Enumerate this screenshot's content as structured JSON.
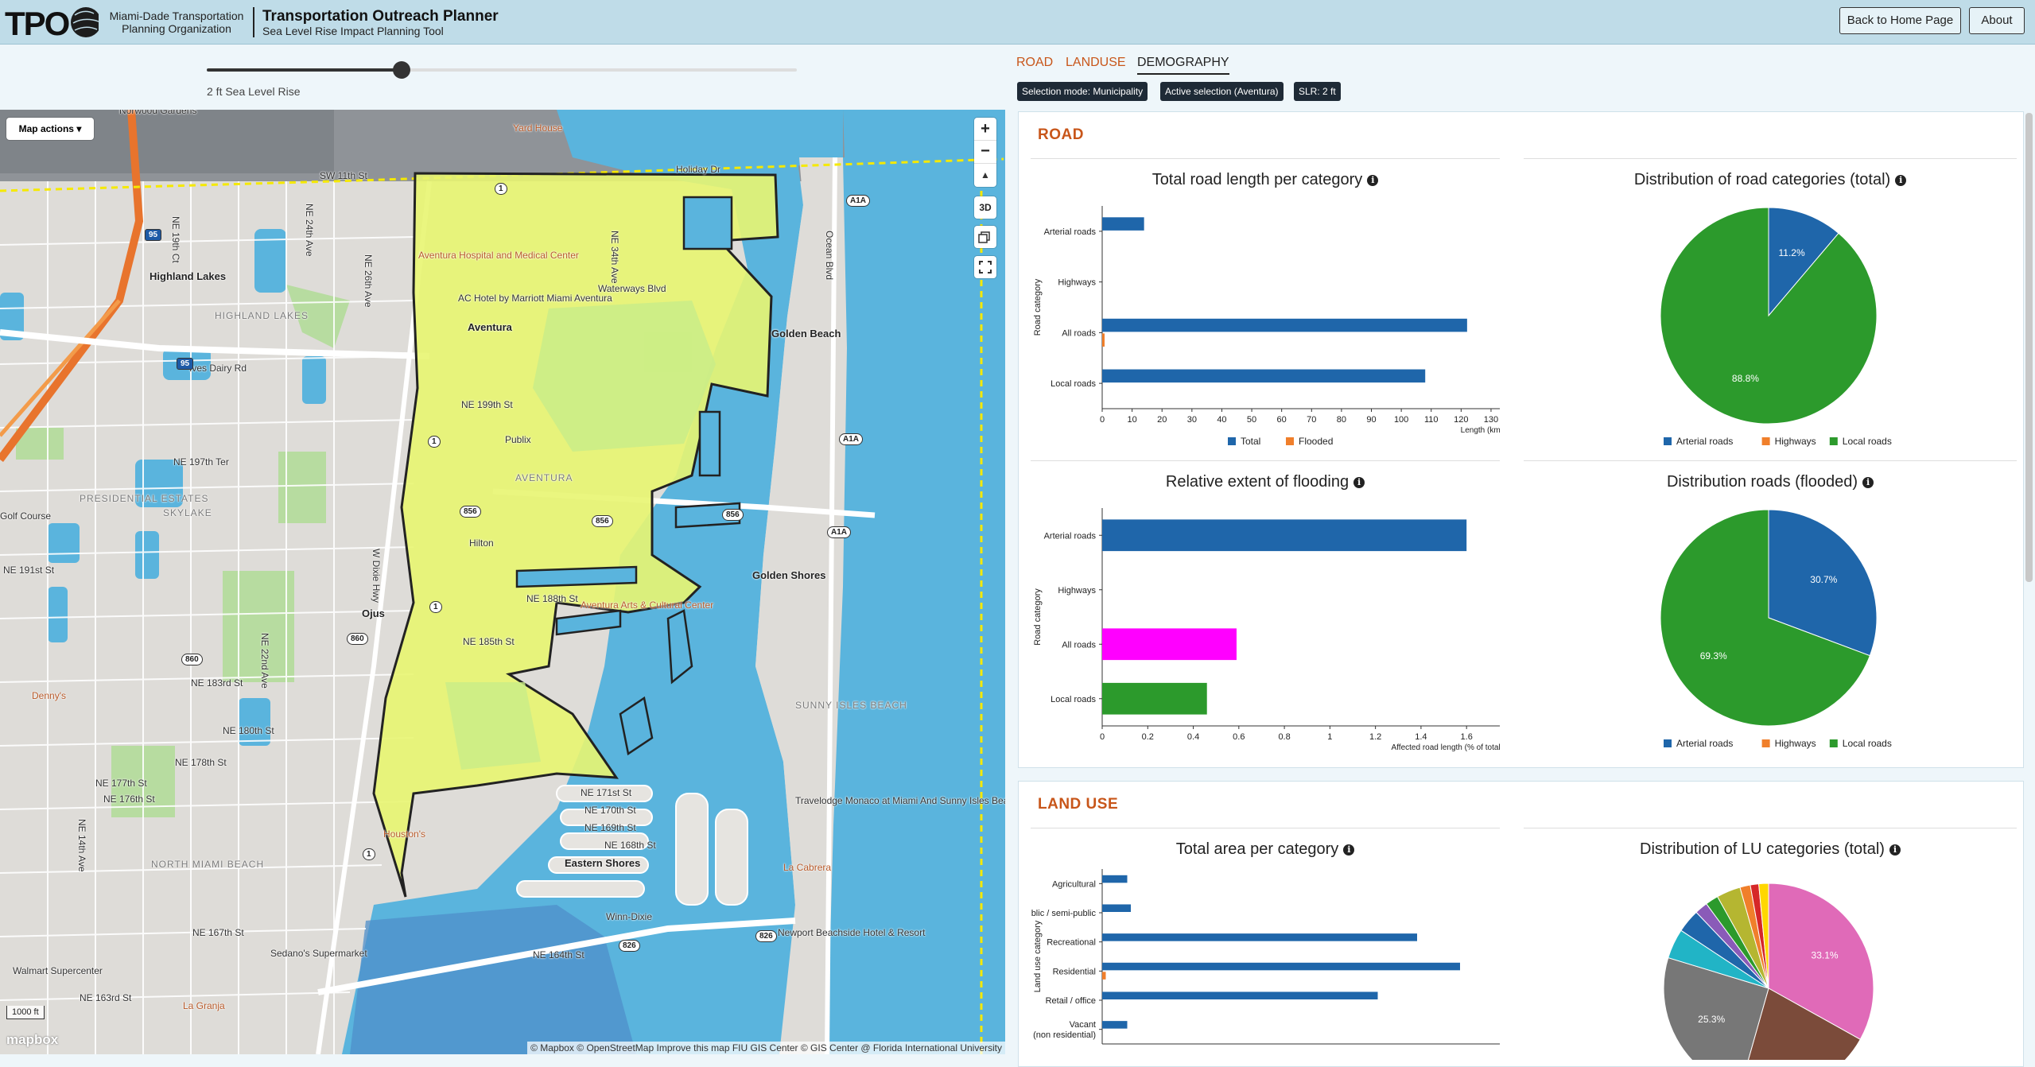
{
  "header": {
    "logo_text": "TPO",
    "org_line1": "Miami-Dade Transportation",
    "org_line2": "Planning Organization",
    "title": "Transportation Outreach Planner",
    "subtitle": "Sea Level Rise Impact Planning Tool",
    "home_button": "Back to Home Page",
    "about_button": "About"
  },
  "slider": {
    "label": "2 ft Sea Level Rise",
    "value_fraction": 0.33
  },
  "map": {
    "actions_button": "Map actions",
    "zoom_in": "+",
    "zoom_out": "−",
    "compass": "▲",
    "btn_3d": "3D",
    "scale": "1000 ft",
    "mapbox_logo": "mapbox",
    "attribution": "© Mapbox © OpenStreetMap Improve this map FIU GIS Center © GIS Center @ Florida International University",
    "labels": [
      {
        "id": "l1",
        "text": "Highland Lakes",
        "bold": true
      },
      {
        "id": "l2",
        "text": "HIGHLAND LAKES",
        "dist": true
      },
      {
        "id": "l3",
        "text": "Aventura",
        "bold": true
      },
      {
        "id": "l4",
        "text": "AVENTURA",
        "dist": true
      },
      {
        "id": "l5",
        "text": "Golden Beach",
        "bold": true
      },
      {
        "id": "l6",
        "text": "Golden Shores",
        "bold": true
      },
      {
        "id": "l7",
        "text": "SUNNY ISLES BEACH",
        "dist": true
      },
      {
        "id": "l8",
        "text": "Eastern Shores",
        "bold": true
      },
      {
        "id": "l9",
        "text": "NORTH MIAMI BEACH",
        "dist": true
      },
      {
        "id": "l10",
        "text": "PRESIDENTIAL ESTATES",
        "dist": true
      },
      {
        "id": "l11",
        "text": "SKYLAKE",
        "dist": true
      },
      {
        "id": "l12",
        "text": "Ojus",
        "bold": true
      },
      {
        "id": "l13",
        "text": "Ives Dairy Rd"
      },
      {
        "id": "l14",
        "text": "NE 199th St"
      },
      {
        "id": "l15",
        "text": "NE 188th St"
      },
      {
        "id": "l16",
        "text": "NE 185th St"
      },
      {
        "id": "l17",
        "text": "Waterways Blvd"
      },
      {
        "id": "l18",
        "text": "Aventura Hospital and Medical Center",
        "poi": true
      },
      {
        "id": "l19",
        "text": "AC Hotel by Marriott Miami Aventura"
      },
      {
        "id": "l20",
        "text": "Publix"
      },
      {
        "id": "l21",
        "text": "Hilton"
      },
      {
        "id": "l22",
        "text": "Aventura Arts & Cultural Center",
        "poi": true
      },
      {
        "id": "l23",
        "text": "Travelodge Monaco at Miami And Sunny Isles Beach"
      },
      {
        "id": "l24",
        "text": "Newport Beachside Hotel & Resort"
      },
      {
        "id": "l25",
        "text": "Winn-Dixie"
      },
      {
        "id": "l26",
        "text": "La Cabrera",
        "poi": true
      },
      {
        "id": "l27",
        "text": "Houston's",
        "poi": true
      },
      {
        "id": "l28",
        "text": "Walmart Supercenter"
      },
      {
        "id": "l29",
        "text": "Sedano's Supermarket"
      },
      {
        "id": "l30",
        "text": "La Granja",
        "poi": true
      },
      {
        "id": "l31",
        "text": "Denny's",
        "poi": true
      },
      {
        "id": "l32",
        "text": "SW 11th St"
      },
      {
        "id": "l33",
        "text": "Holiday Dr"
      },
      {
        "id": "l34",
        "text": "Ocean Blvd"
      },
      {
        "id": "l35",
        "text": "NE 197th Ter"
      },
      {
        "id": "l36",
        "text": "NE 191st St"
      },
      {
        "id": "l37",
        "text": "NE 183rd St"
      },
      {
        "id": "l38",
        "text": "NE 180th St"
      },
      {
        "id": "l39",
        "text": "NE 178th St"
      },
      {
        "id": "l40",
        "text": "NE 177th St"
      },
      {
        "id": "l41",
        "text": "NE 176th St"
      },
      {
        "id": "l42",
        "text": "NE 171st St"
      },
      {
        "id": "l43",
        "text": "NE 170th St"
      },
      {
        "id": "l44",
        "text": "NE 169th St"
      },
      {
        "id": "l45",
        "text": "NE 168th St"
      },
      {
        "id": "l46",
        "text": "NE 167th St"
      },
      {
        "id": "l47",
        "text": "NE 163rd St"
      },
      {
        "id": "l48",
        "text": "NE 164th St"
      },
      {
        "id": "l49",
        "text": "NE 34th Ave"
      },
      {
        "id": "l50",
        "text": "W Dixie Hwy"
      },
      {
        "id": "l51",
        "text": "NE 22nd Ave"
      },
      {
        "id": "l52",
        "text": "NE 14th Ave"
      },
      {
        "id": "l53",
        "text": "Norwood Gardens"
      },
      {
        "id": "l54",
        "text": "Yard House",
        "poi": true
      },
      {
        "id": "l55",
        "text": "Golf Course"
      },
      {
        "id": "l56",
        "text": "NE 19th Ct"
      },
      {
        "id": "l57",
        "text": "NE 24th Ave"
      },
      {
        "id": "l58",
        "text": "NE 26th Ave"
      }
    ],
    "shields": [
      {
        "id": "s1",
        "text": "1"
      },
      {
        "id": "s2",
        "text": "1"
      },
      {
        "id": "s3",
        "text": "1"
      },
      {
        "id": "s4",
        "text": "1"
      },
      {
        "id": "s5",
        "text": "856"
      },
      {
        "id": "s6",
        "text": "856"
      },
      {
        "id": "s7",
        "text": "856"
      },
      {
        "id": "s8",
        "text": "860"
      },
      {
        "id": "s9",
        "text": "860"
      },
      {
        "id": "s10",
        "text": "826"
      },
      {
        "id": "s11",
        "text": "826"
      },
      {
        "id": "s12",
        "text": "A1A"
      },
      {
        "id": "s13",
        "text": "A1A"
      },
      {
        "id": "s14",
        "text": "A1A"
      },
      {
        "id": "s15",
        "text": "95"
      },
      {
        "id": "s16",
        "text": "95"
      }
    ]
  },
  "tabs": [
    {
      "label": "ROAD",
      "active": false
    },
    {
      "label": "LANDUSE",
      "active": false
    },
    {
      "label": "DEMOGRAPHY",
      "active": true
    }
  ],
  "chips": [
    "Selection mode: Municipality",
    "Active selection (Aventura)",
    "SLR: 2 ft"
  ],
  "road_panel": {
    "title": "ROAD"
  },
  "landuse_panel": {
    "title": "LAND USE"
  },
  "info_glyph": "i",
  "colors": {
    "blue": "#1f66aa",
    "orange": "#f07f2b",
    "green": "#2c9a2c",
    "magenta": "#ff00ff",
    "gray": "#777777",
    "brown": "#7b4b3a",
    "pink": "#e06ab8",
    "teal": "#21b4c6",
    "olive": "#b5b631",
    "purple": "#8a5bb8",
    "red": "#d62728",
    "accent": "#c8561a"
  },
  "chart_data": [
    {
      "id": "road_length",
      "type": "bar",
      "title": "Total road length per category",
      "orientation": "horizontal",
      "categories": [
        "Arterial roads",
        "Highways",
        "All roads",
        "Local roads"
      ],
      "series": [
        {
          "name": "Total",
          "values": [
            14,
            0,
            122,
            108
          ],
          "color": "#1f66aa"
        },
        {
          "name": "Flooded",
          "values": [
            0,
            0,
            0.8,
            0
          ],
          "color": "#f07f2b"
        }
      ],
      "xlabel": "Length (km)",
      "ylabel": "Road category",
      "xlim": [
        0,
        134
      ],
      "xticks": [
        0,
        10,
        20,
        30,
        40,
        50,
        60,
        70,
        80,
        90,
        100,
        110,
        120,
        130
      ]
    },
    {
      "id": "road_dist_total",
      "type": "pie",
      "title": "Distribution of road categories (total)",
      "labels": [
        "Arterial roads",
        "Highways",
        "Local roads"
      ],
      "values": [
        11.2,
        0,
        88.8
      ],
      "value_labels": [
        "11.2%",
        "",
        "88.8%"
      ],
      "colors": [
        "#1f66aa",
        "#f07f2b",
        "#2c9a2c"
      ]
    },
    {
      "id": "flood_extent",
      "type": "bar",
      "title": "Relative extent of flooding",
      "orientation": "horizontal",
      "categories": [
        "Arterial roads",
        "Highways",
        "All roads",
        "Local roads"
      ],
      "values": [
        1.6,
        0,
        0.59,
        0.46
      ],
      "colors": [
        "#1f66aa",
        "#777777",
        "#ff00ff",
        "#2c9a2c"
      ],
      "xlabel": "Affected road length (% of total)",
      "ylabel": "Road category",
      "xlim": [
        0,
        1.76
      ],
      "xticks": [
        "0",
        "0.2",
        "0.4",
        "0.6",
        "0.8",
        "1",
        "1.2",
        "1.4",
        "1.6"
      ]
    },
    {
      "id": "road_dist_flooded",
      "type": "pie",
      "title": "Distribution roads (flooded)",
      "labels": [
        "Arterial roads",
        "Highways",
        "Local roads"
      ],
      "values": [
        30.7,
        0,
        69.3
      ],
      "value_labels": [
        "30.7%",
        "",
        "69.3%"
      ],
      "colors": [
        "#1f66aa",
        "#f07f2b",
        "#2c9a2c"
      ]
    },
    {
      "id": "lu_area",
      "type": "bar",
      "title": "Total area per category",
      "orientation": "horizontal",
      "categories": [
        "Agricultural",
        "Public / semi-public",
        "Recreational",
        "Residential",
        "Retail / office",
        "Vacant (non residential)"
      ],
      "series": [
        {
          "name": "Total",
          "values": [
            0.07,
            0.08,
            0.88,
            1.0,
            0.77,
            0.07
          ],
          "color": "#1f66aa"
        },
        {
          "name": "Flooded",
          "values": [
            0,
            0,
            0,
            0.01,
            0,
            0
          ],
          "color": "#f07f2b"
        }
      ],
      "ylabel": "Land use category"
    },
    {
      "id": "lu_dist_total",
      "type": "pie",
      "title": "Distribution of LU categories (total)",
      "values": [
        33.1,
        21.3,
        25.3,
        4.6,
        3.6,
        2.0,
        2.0,
        3.7,
        1.6,
        1.3,
        1.5
      ],
      "value_labels": [
        "33.1%",
        "",
        "25.3%",
        "",
        "",
        "",
        "",
        "",
        "",
        "",
        ""
      ],
      "colors": [
        "#e06ab8",
        "#7b4b3a",
        "#777777",
        "#21b4c6",
        "#1f66aa",
        "#8a5bb8",
        "#2c9a2c",
        "#b5b631",
        "#f07f2b",
        "#d62728",
        "#ffd700"
      ]
    }
  ]
}
